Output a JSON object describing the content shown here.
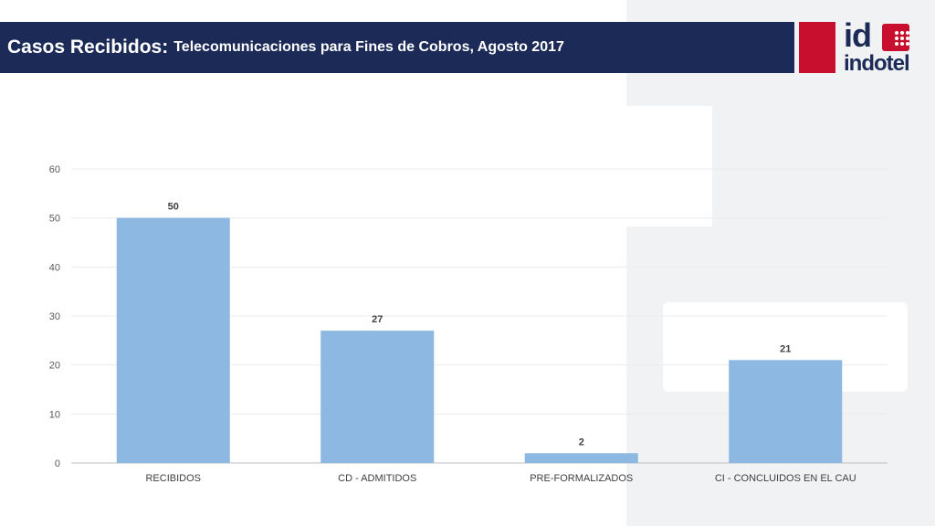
{
  "header": {
    "title_main": "Casos Recibidos:",
    "title_sub": "Telecomunicaciones para Fines de Cobros, Agosto 2017"
  },
  "logo": {
    "id_text": "id",
    "word": "indotel"
  },
  "colors": {
    "bar": "#8cb8e2",
    "title_bg": "#1b2a57",
    "brand_red": "#c8102e"
  },
  "chart_data": {
    "type": "bar",
    "categories": [
      "RECIBIDOS",
      "CD - ADMITIDOS",
      "PRE-FORMALIZADOS",
      "CI - CONCLUIDOS EN EL CAU"
    ],
    "values": [
      50,
      27,
      2,
      21
    ],
    "ylim": [
      0,
      60
    ],
    "yticks": [
      0,
      10,
      20,
      30,
      40,
      50,
      60
    ],
    "grid": true,
    "data_labels": true
  }
}
